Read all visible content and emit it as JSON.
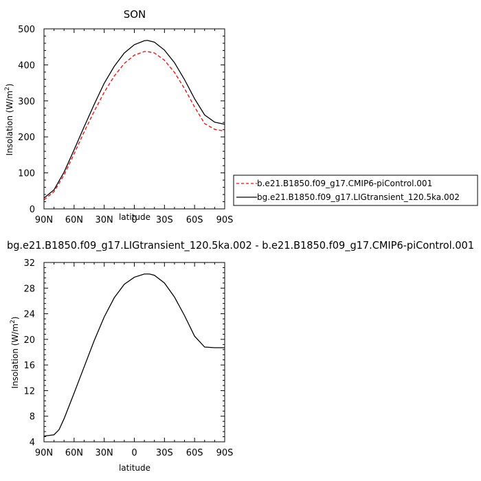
{
  "chart_data": [
    {
      "type": "line",
      "title": "SON",
      "xlabel": "latitude",
      "ylabel_main": "Insolation (W/m",
      "ylabel_sup": "2",
      "ylabel_end": ")",
      "x_ticks": [
        90,
        60,
        30,
        0,
        -30,
        -60,
        -90
      ],
      "x_tick_labels": [
        "90N",
        "60N",
        "30N",
        "0",
        "30S",
        "60S",
        "90S"
      ],
      "xlim": [
        90,
        -90
      ],
      "ylim": [
        0,
        500
      ],
      "y_ticks": [
        0,
        100,
        200,
        300,
        400,
        500
      ],
      "y_tick_labels": [
        "0",
        "100",
        "200",
        "300",
        "400",
        "500"
      ],
      "grid": false,
      "legend_position": "right",
      "x": [
        90,
        80,
        70,
        60,
        50,
        40,
        30,
        20,
        10,
        0,
        -10,
        -13,
        -20,
        -30,
        -40,
        -50,
        -60,
        -70,
        -80,
        -90
      ],
      "series": [
        {
          "name": "b.e21.B1850.f09_g17.CMIP6-piControl.001",
          "color": "#ff0000",
          "dash": "dashed",
          "values": [
            25,
            48,
            94,
            153,
            214,
            271,
            324,
            369,
            404,
            427,
            437,
            437,
            433,
            413,
            379,
            334,
            283,
            237,
            221,
            216
          ]
        },
        {
          "name": "bg.e21.B1850.f09_g17.LIGtransient_120.5ka.002",
          "color": "#000000",
          "dash": "solid",
          "values": [
            30,
            53,
            102,
            164,
            228,
            290,
            349,
            396,
            433,
            456,
            467,
            468,
            463,
            441,
            406,
            359,
            306,
            261,
            241,
            235
          ]
        }
      ]
    },
    {
      "type": "line",
      "title": "bg.e21.B1850.f09_g17.LIGtransient_120.5ka.002 - b.e21.B1850.f09_g17.CMIP6-piControl.001",
      "xlabel": "latitude",
      "ylabel_main": "Insolation (W/m",
      "ylabel_sup": "2",
      "ylabel_end": ")",
      "x_ticks": [
        90,
        60,
        30,
        0,
        -30,
        -60,
        -90
      ],
      "x_tick_labels": [
        "90N",
        "60N",
        "30N",
        "0",
        "30S",
        "60S",
        "90S"
      ],
      "xlim": [
        90,
        -90
      ],
      "ylim": [
        4,
        32
      ],
      "y_ticks": [
        4,
        8,
        12,
        16,
        20,
        24,
        28,
        32
      ],
      "y_tick_labels": [
        "4",
        "8",
        "12",
        "16",
        "20",
        "24",
        "28",
        "32"
      ],
      "grid": false,
      "x": [
        90,
        80,
        75,
        70,
        60,
        50,
        40,
        30,
        20,
        10,
        0,
        -10,
        -15,
        -20,
        -30,
        -40,
        -50,
        -60,
        -70,
        -80,
        -90
      ],
      "series": [
        {
          "color": "#000000",
          "dash": "solid",
          "values": [
            4.9,
            5.1,
            5.9,
            7.6,
            11.6,
            15.7,
            19.8,
            23.5,
            26.5,
            28.6,
            29.7,
            30.2,
            30.2,
            30.0,
            28.8,
            26.6,
            23.7,
            20.5,
            18.8,
            18.7,
            18.7
          ]
        }
      ]
    }
  ]
}
